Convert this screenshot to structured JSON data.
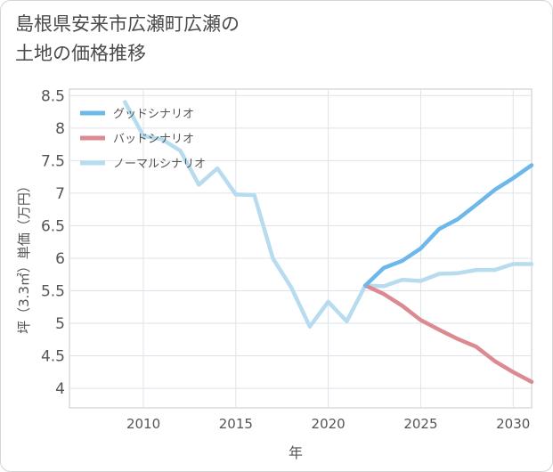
{
  "chart_data": {
    "type": "line",
    "title": [
      "島根県安来市広瀬町広瀬の",
      "土地の価格推移"
    ],
    "xlabel": "年",
    "ylabel": "坪（3.3㎡）単価（万円）",
    "xlim": [
      2006,
      2031
    ],
    "ylim": [
      3.7,
      8.6
    ],
    "xticks": [
      2010,
      2015,
      2020,
      2025,
      2030
    ],
    "xtick_labels": [
      "2010",
      "2015",
      "2020",
      "2025",
      "2030"
    ],
    "yticks": [
      4,
      4.5,
      5,
      5.5,
      6,
      6.5,
      7,
      7.5,
      8,
      8.5
    ],
    "ytick_labels": [
      "4",
      "4.5",
      "5",
      "5.5",
      "6",
      "6.5",
      "7",
      "7.5",
      "8",
      "8.5"
    ],
    "grid": true,
    "legend_position": "top-left",
    "series": [
      {
        "name": "グッドシナリオ",
        "color": "#6cb8ea",
        "x": [
          2022,
          2023,
          2024,
          2025,
          2026,
          2027,
          2028,
          2029,
          2030,
          2031
        ],
        "values": [
          5.58,
          5.85,
          5.96,
          6.15,
          6.45,
          6.6,
          6.82,
          7.05,
          7.23,
          7.43
        ]
      },
      {
        "name": "バッドシナリオ",
        "color": "#dc8a91",
        "x": [
          2022,
          2023,
          2024,
          2025,
          2026,
          2027,
          2028,
          2029,
          2030,
          2031
        ],
        "values": [
          5.58,
          5.45,
          5.27,
          5.05,
          4.9,
          4.76,
          4.64,
          4.42,
          4.25,
          4.1
        ]
      },
      {
        "name": "ノーマルシナリオ",
        "color": "#b7dcef",
        "x": [
          2009,
          2010,
          2011,
          2012,
          2013,
          2014,
          2015,
          2016,
          2017,
          2018,
          2019,
          2020,
          2021,
          2022,
          2023,
          2024,
          2025,
          2026,
          2027,
          2028,
          2029,
          2030,
          2031
        ],
        "values": [
          8.4,
          7.88,
          7.83,
          7.65,
          7.13,
          7.38,
          6.98,
          6.97,
          6.0,
          5.55,
          4.95,
          5.33,
          5.03,
          5.58,
          5.57,
          5.67,
          5.65,
          5.76,
          5.77,
          5.82,
          5.82,
          5.91,
          5.91
        ]
      }
    ]
  }
}
